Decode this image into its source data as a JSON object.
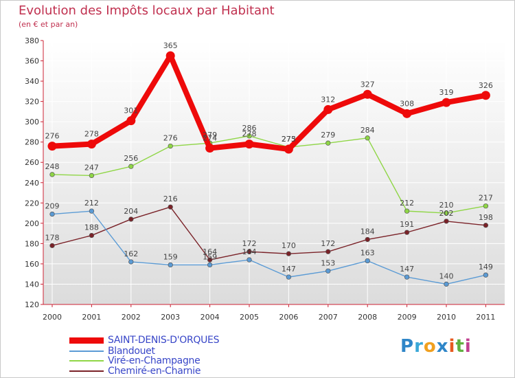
{
  "title": "Evolution des Impôts locaux par Habitant",
  "subtitle": "(en € et par an)",
  "logo": {
    "text": "Proxiti",
    "letters": [
      "P",
      "r",
      "o",
      "x",
      "i",
      "t",
      "i"
    ],
    "colors": [
      "#2f86c8",
      "#3aa8d8",
      "#f0a020",
      "#2f86c8",
      "#e85a20",
      "#60b040",
      "#c04090"
    ]
  },
  "chart_data": {
    "type": "line",
    "title": "Evolution des Impôts locaux par Habitant",
    "ylabel": "(en € et par an)",
    "xlabel": "",
    "ylim": [
      120,
      380
    ],
    "yticks": [
      120,
      140,
      160,
      180,
      200,
      220,
      240,
      260,
      280,
      300,
      320,
      340,
      360,
      380
    ],
    "categories": [
      "2000",
      "2001",
      "2002",
      "2003",
      "2004",
      "2005",
      "2006",
      "2007",
      "2008",
      "2009",
      "2010",
      "2011"
    ],
    "grid": true,
    "legend": "bottom-left",
    "series": [
      {
        "name": "SAINT-DENIS-D'ORQUES",
        "color": "#ee0a0a",
        "values": [
          276,
          278,
          301,
          365,
          274,
          278,
          273,
          312,
          327,
          308,
          319,
          326
        ],
        "labels": [
          "276",
          "278",
          "301",
          "365",
          "274",
          "278",
          "273",
          "312",
          "327",
          "308",
          "319",
          "326"
        ]
      },
      {
        "name": "Blandouet",
        "color": "#5b9bd5",
        "values": [
          209,
          212,
          162,
          159,
          159,
          164,
          147,
          153,
          163,
          147,
          140,
          149
        ],
        "labels": [
          "209",
          "212",
          "162",
          "159",
          "159",
          "164",
          "147",
          "153",
          "163",
          "147",
          "140",
          "149"
        ]
      },
      {
        "name": "Viré-en-Champagne",
        "color": "#8fd646",
        "values": [
          248,
          247,
          256,
          276,
          279,
          286,
          275,
          279,
          284,
          212,
          210,
          217
        ],
        "labels": [
          "248",
          "247",
          "256",
          "276",
          "279",
          "286",
          "275",
          "279",
          "284",
          "212",
          "210",
          "217"
        ]
      },
      {
        "name": "Chemiré-en-Charnie",
        "color": "#7a2228",
        "values": [
          178,
          188,
          204,
          216,
          164,
          172,
          170,
          172,
          184,
          191,
          202,
          198
        ],
        "labels": [
          "178",
          "188",
          "204",
          "216",
          "164",
          "172",
          "170",
          "172",
          "184",
          "191",
          "202",
          "198"
        ]
      }
    ]
  }
}
